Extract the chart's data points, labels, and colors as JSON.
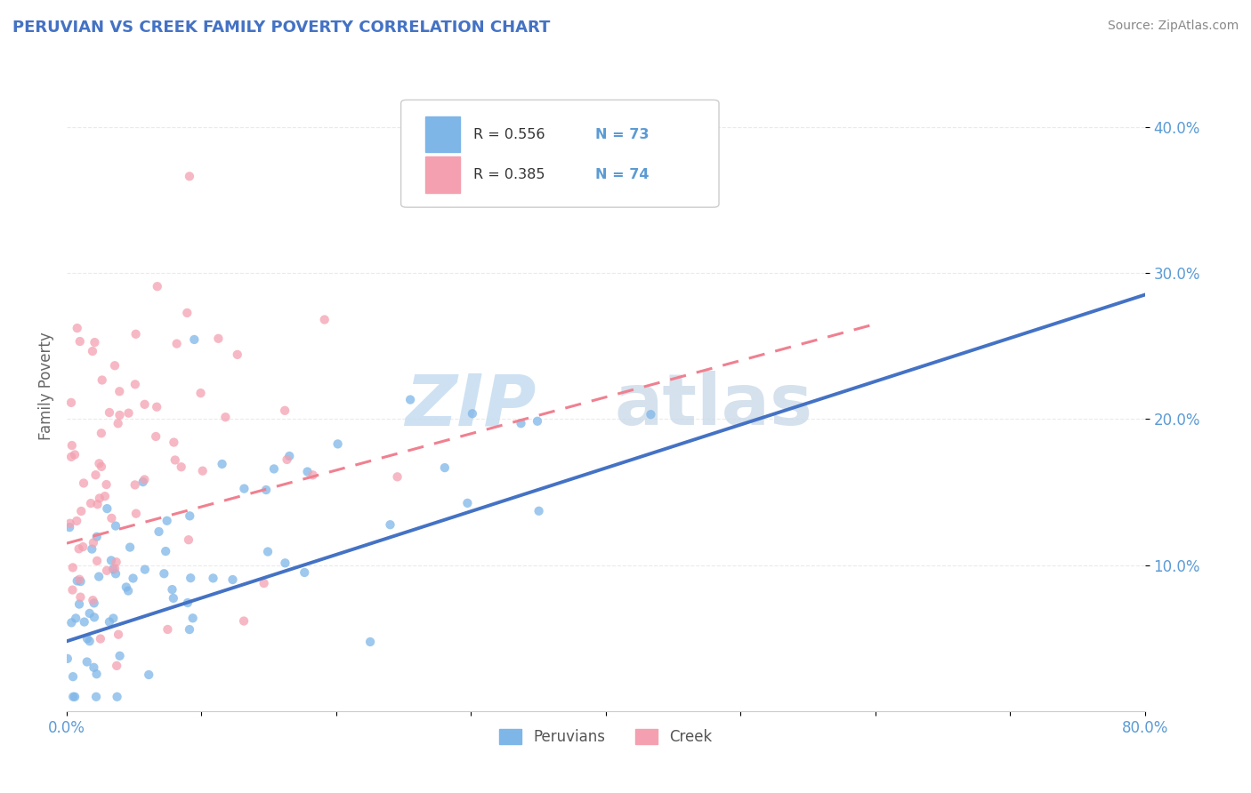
{
  "title": "PERUVIAN VS CREEK FAMILY POVERTY CORRELATION CHART",
  "source_text": "Source: ZipAtlas.com",
  "ylabel": "Family Poverty",
  "ytick_labels": [
    "10.0%",
    "20.0%",
    "30.0%",
    "40.0%"
  ],
  "ytick_values": [
    0.1,
    0.2,
    0.3,
    0.4
  ],
  "xlim": [
    0.0,
    0.8
  ],
  "ylim": [
    0.0,
    0.445
  ],
  "peruvian_color": "#7EB6E8",
  "creek_color": "#F4A0B0",
  "peruvian_line_color": "#4472C4",
  "creek_line_color": "#F08090",
  "legend_label1": "Peruvians",
  "legend_label2": "Creek",
  "peruvian_r": 0.556,
  "peruvian_n": 73,
  "creek_r": 0.385,
  "creek_n": 74,
  "peru_line_x0": 0.0,
  "peru_line_y0": 0.048,
  "peru_line_x1": 0.8,
  "peru_line_y1": 0.285,
  "creek_line_x0": 0.0,
  "creek_line_y0": 0.115,
  "creek_line_x1": 0.6,
  "creek_line_y1": 0.265,
  "watermark_zip_color": "#C5DCF0",
  "watermark_atlas_color": "#C8D8E8",
  "background_color": "#FFFFFF",
  "grid_color": "#E8E8E8",
  "title_color": "#4472C4",
  "tick_color": "#5B9BD5",
  "ylabel_color": "#666666"
}
